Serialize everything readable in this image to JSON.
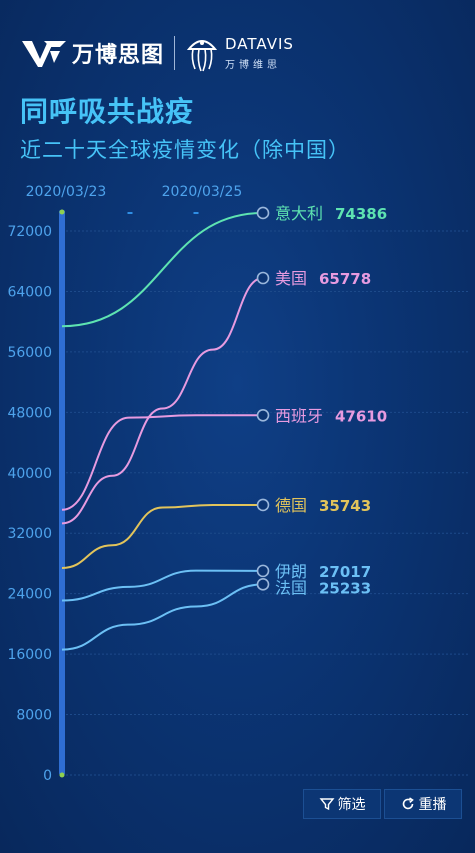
{
  "brand": {
    "name": "万博思图",
    "sub_en": "DATAVIS",
    "sub_cn": "万博维思"
  },
  "title": "同呼吸共战疫",
  "subtitle": "近二十天全球疫情变化（除中国）",
  "controls": {
    "filter_label": "筛选",
    "replay_label": "重播"
  },
  "chart_data": {
    "type": "line",
    "x_tick_labels": [
      "2020/03/23",
      "2020/03/25"
    ],
    "ylim": [
      0,
      72000
    ],
    "y_ticks": [
      0,
      8000,
      16000,
      24000,
      32000,
      40000,
      48000,
      56000,
      64000,
      72000
    ],
    "grid": true,
    "series": [
      {
        "name": "意大利",
        "color": "#5ee3b1",
        "label": "74386",
        "values": [
          59400,
          74386
        ]
      },
      {
        "name": "美国",
        "color": "#e79be0",
        "label": "65778",
        "values": [
          33300,
          39600,
          48500,
          56300,
          65778
        ]
      },
      {
        "name": "西班牙",
        "color": "#e79be0",
        "label": "47610",
        "values": [
          35100,
          47300,
          47610,
          47610
        ]
      },
      {
        "name": "德国",
        "color": "#e2c45b",
        "label": "35743",
        "values": [
          27400,
          30400,
          35400,
          35743,
          35743
        ]
      },
      {
        "name": "伊朗",
        "color": "#6cc0f5",
        "label": "27017",
        "values": [
          23100,
          24900,
          27050,
          27017
        ]
      },
      {
        "name": "法国",
        "color": "#6cc0f5",
        "label": "25233",
        "values": [
          16600,
          19900,
          22300,
          25233
        ]
      }
    ]
  }
}
